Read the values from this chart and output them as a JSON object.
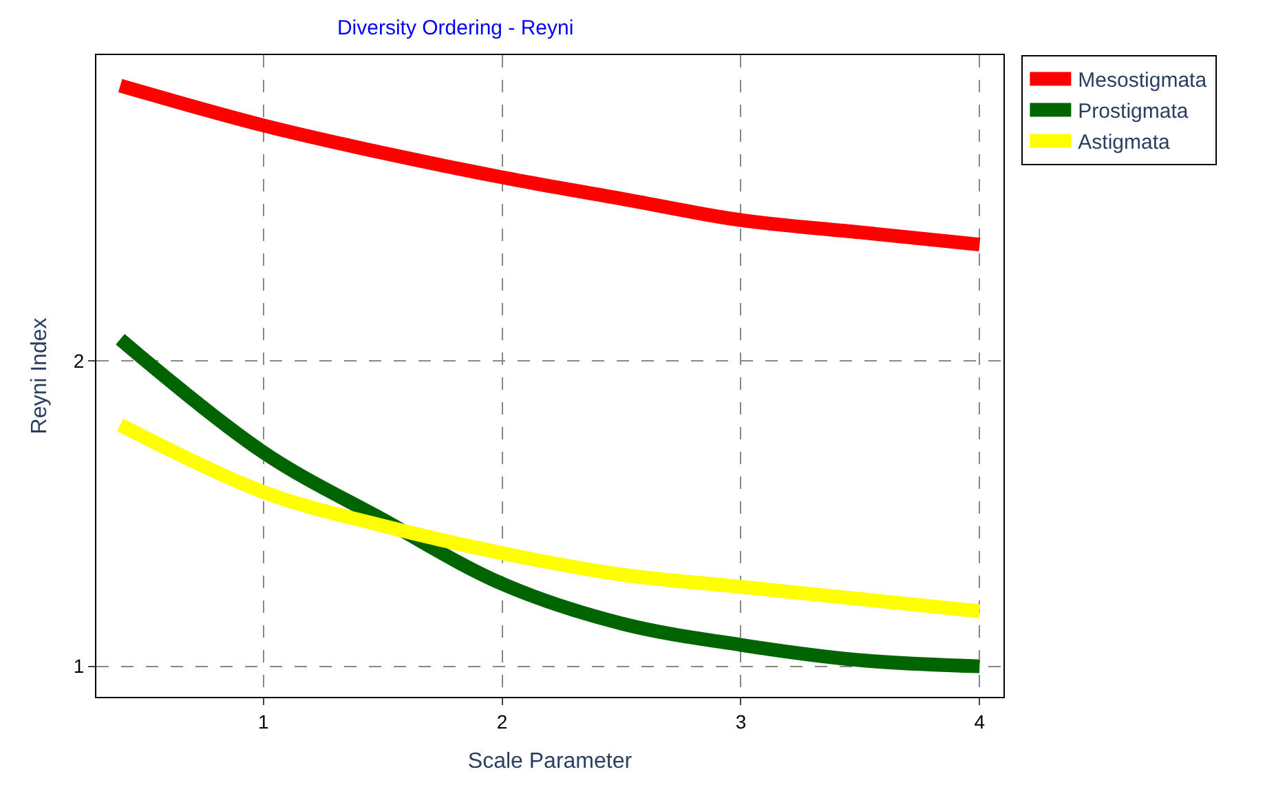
{
  "chart_data": {
    "type": "line",
    "title": "Diversity Ordering - Reyni",
    "xlabel": "Scale Parameter",
    "ylabel": "Reyni Index",
    "xlim": [
      0.3,
      4.1
    ],
    "xticks": [
      1,
      2,
      3,
      4
    ],
    "ylim": [
      0.9,
      3.0
    ],
    "yticks": [
      1,
      2
    ],
    "grid": true,
    "legend": "top right",
    "marker": "none",
    "line_style": "solid",
    "series": [
      {
        "name": "Mesostigmata",
        "color": "#ff0000",
        "x": [
          0.4,
          1,
          1.5,
          2,
          2.5,
          3,
          3.5,
          4
        ],
        "values": [
          2.9,
          2.77,
          2.68,
          2.6,
          2.53,
          2.46,
          2.42,
          2.38
        ]
      },
      {
        "name": "Prostigmata",
        "color": "#006400",
        "x": [
          0.4,
          1,
          1.5,
          2,
          2.5,
          3,
          3.5,
          4
        ],
        "values": [
          2.07,
          1.7,
          1.48,
          1.27,
          1.14,
          1.07,
          1.02,
          1.0
        ]
      },
      {
        "name": "Astigmata",
        "color": "#ffff00",
        "x": [
          0.4,
          1,
          1.5,
          2,
          2.5,
          3,
          3.5,
          4
        ],
        "values": [
          1.79,
          1.57,
          1.46,
          1.37,
          1.3,
          1.26,
          1.22,
          1.18
        ]
      }
    ]
  }
}
